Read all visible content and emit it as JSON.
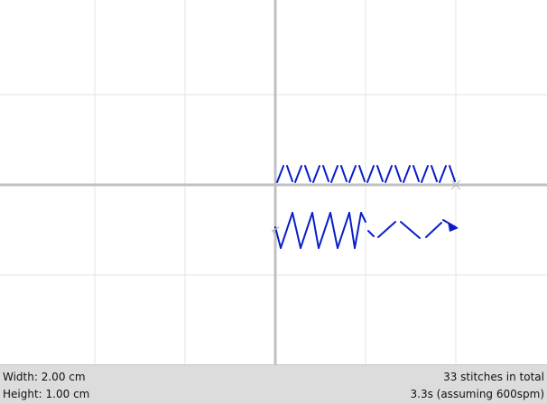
{
  "status": {
    "width_label": "Width:",
    "width_value": "2.00 cm",
    "height_label": "Height:",
    "height_value": "1.00 cm",
    "stitch_count": "33 stitches in total",
    "duration": "3.3s (assuming 600spm)"
  },
  "colors": {
    "background": "#ffffff",
    "grid": "#e4e4e4",
    "axis": "#c0c0c0",
    "stitch": "#0a1ec8",
    "jump": "#b8b8b8",
    "status_bar": "#dcdcdc"
  },
  "icons": {
    "start": "start-marker-icon",
    "end": "end-arrow-icon"
  }
}
